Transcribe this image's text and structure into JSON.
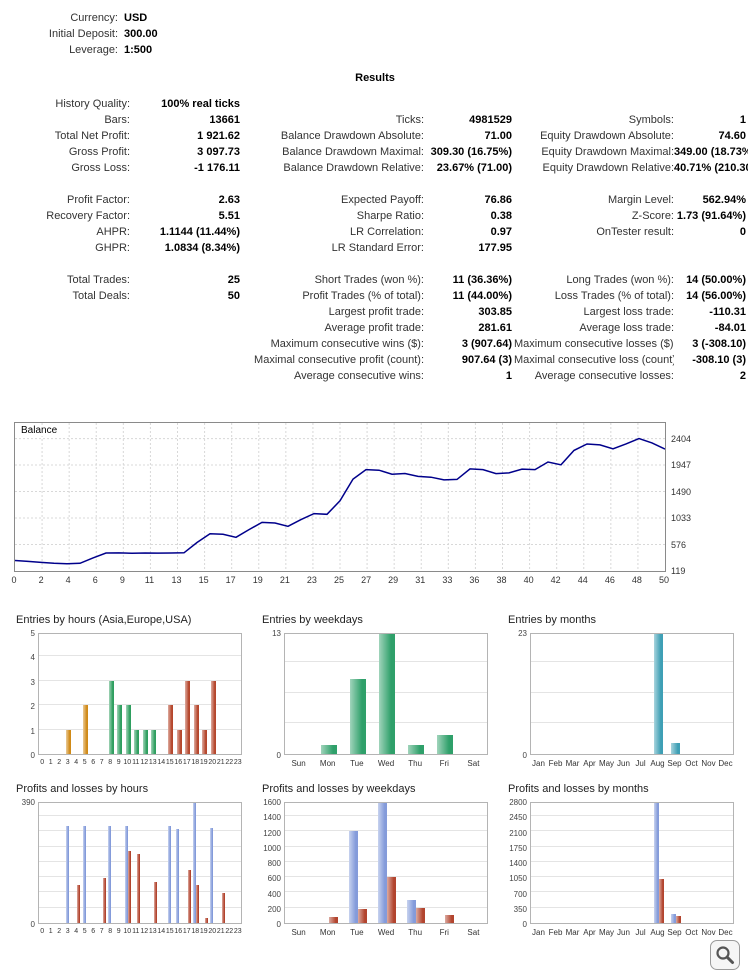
{
  "results_title": "Results",
  "account_info": [
    {
      "label": "Currency:",
      "value": "USD"
    },
    {
      "label": "Initial Deposit:",
      "value": "300.00"
    },
    {
      "label": "Leverage:",
      "value": "1:500"
    }
  ],
  "stats_groups": [
    {
      "rows": [
        [
          {
            "label": "History Quality:",
            "value": "100% real ticks"
          },
          null,
          null
        ],
        [
          {
            "label": "Bars:",
            "value": "13661"
          },
          {
            "label": "Ticks:",
            "value": "4981529"
          },
          {
            "label": "Symbols:",
            "value": "1"
          }
        ],
        [
          {
            "label": "Total Net Profit:",
            "value": "1 921.62"
          },
          {
            "label": "Balance Drawdown Absolute:",
            "value": "71.00"
          },
          {
            "label": "Equity Drawdown Absolute:",
            "value": "74.60"
          }
        ],
        [
          {
            "label": "Gross Profit:",
            "value": "3 097.73"
          },
          {
            "label": "Balance Drawdown Maximal:",
            "value": "309.30 (16.75%)"
          },
          {
            "label": "Equity Drawdown Maximal:",
            "value": "349.00 (18.73%)"
          }
        ],
        [
          {
            "label": "Gross Loss:",
            "value": "-1 176.11"
          },
          {
            "label": "Balance Drawdown Relative:",
            "value": "23.67% (71.00)"
          },
          {
            "label": "Equity Drawdown Relative:",
            "value": "40.71% (210.30)"
          }
        ]
      ]
    },
    {
      "rows": [
        [
          {
            "label": "Profit Factor:",
            "value": "2.63"
          },
          {
            "label": "Expected Payoff:",
            "value": "76.86"
          },
          {
            "label": "Margin Level:",
            "value": "562.94%"
          }
        ],
        [
          {
            "label": "Recovery Factor:",
            "value": "5.51"
          },
          {
            "label": "Sharpe Ratio:",
            "value": "0.38"
          },
          {
            "label": "Z-Score:",
            "value": "1.73 (91.64%)"
          }
        ],
        [
          {
            "label": "AHPR:",
            "value": "1.1144 (11.44%)"
          },
          {
            "label": "LR Correlation:",
            "value": "0.97"
          },
          {
            "label": "OnTester result:",
            "value": "0"
          }
        ],
        [
          {
            "label": "GHPR:",
            "value": "1.0834 (8.34%)"
          },
          {
            "label": "LR Standard Error:",
            "value": "177.95"
          },
          null
        ]
      ]
    },
    {
      "rows": [
        [
          {
            "label": "Total Trades:",
            "value": "25"
          },
          {
            "label": "Short Trades (won %):",
            "value": "11 (36.36%)"
          },
          {
            "label": "Long Trades (won %):",
            "value": "14 (50.00%)"
          }
        ],
        [
          {
            "label": "Total Deals:",
            "value": "50"
          },
          {
            "label": "Profit Trades (% of total):",
            "value": "11 (44.00%)"
          },
          {
            "label": "Loss Trades (% of total):",
            "value": "14 (56.00%)"
          }
        ],
        [
          null,
          {
            "label": "Largest profit trade:",
            "value": "303.85"
          },
          {
            "label": "Largest loss trade:",
            "value": "-110.31"
          }
        ],
        [
          null,
          {
            "label": "Average profit trade:",
            "value": "281.61"
          },
          {
            "label": "Average loss trade:",
            "value": "-84.01"
          }
        ],
        [
          null,
          {
            "label": "Maximum consecutive wins ($):",
            "value": "3 (907.64)"
          },
          {
            "label": "Maximum consecutive losses ($):",
            "value": "3 (-308.10)"
          }
        ],
        [
          null,
          {
            "label": "Maximal consecutive profit (count):",
            "value": "907.64 (3)"
          },
          {
            "label": "Maximal consecutive loss (count):",
            "value": "-308.10 (3)"
          }
        ],
        [
          null,
          {
            "label": "Average consecutive wins:",
            "value": "1"
          },
          {
            "label": "Average consecutive losses:",
            "value": "2"
          }
        ]
      ]
    }
  ],
  "chart_data": [
    {
      "id": "balance",
      "type": "line",
      "title": "Balance",
      "line_color": "#00008B",
      "grid_color": "#d8d8d8",
      "ylim": [
        119,
        2500
      ],
      "y_ticks": [
        2404,
        1947,
        1490,
        1033,
        576,
        119
      ],
      "x_ticks": [
        "0",
        "2",
        "4",
        "6",
        "9",
        "11",
        "13",
        "15",
        "17",
        "19",
        "21",
        "23",
        "25",
        "27",
        "29",
        "31",
        "33",
        "36",
        "38",
        "40",
        "42",
        "44",
        "46",
        "48",
        "50"
      ],
      "values": [
        300,
        285,
        268,
        252,
        245,
        252,
        345,
        430,
        432,
        425,
        430,
        427,
        430,
        433,
        610,
        760,
        752,
        700,
        833,
        958,
        948,
        890,
        1005,
        1110,
        1098,
        1330,
        1705,
        1868,
        1858,
        1790,
        1802,
        1752,
        1738,
        1690,
        1700,
        1880,
        1868,
        1800,
        1812,
        1878,
        1868,
        2000,
        1952,
        2200,
        2310,
        2295,
        2228,
        2312,
        2404,
        2330,
        2222
      ]
    },
    {
      "id": "entries-by-hours",
      "type": "bar",
      "title": "Entries by hours (Asia,Europe,USA)",
      "categories": [
        "0",
        "1",
        "2",
        "3",
        "4",
        "5",
        "6",
        "7",
        "8",
        "9",
        "10",
        "11",
        "12",
        "13",
        "14",
        "15",
        "16",
        "17",
        "18",
        "19",
        "20",
        "21",
        "22",
        "23"
      ],
      "values": [
        0,
        0,
        0,
        1,
        0,
        2,
        0,
        0,
        3,
        2,
        2,
        1,
        1,
        1,
        0,
        2,
        1,
        3,
        2,
        1,
        3,
        0,
        0,
        0
      ],
      "bar_colors": [
        "#D08A17",
        "#D08A17",
        "#D08A17",
        "#D08A17",
        "#D08A17",
        "#D08A17",
        "#D08A17",
        "#D08A17",
        "#2E9E5F",
        "#2E9E5F",
        "#2E9E5F",
        "#2E9E5F",
        "#2E9E5F",
        "#2E9E5F",
        "#2E9E5F",
        "#B5462C",
        "#B5462C",
        "#B5462C",
        "#B5462C",
        "#B5462C",
        "#B5462C",
        "#B5462C",
        "#B5462C",
        "#B5462C"
      ],
      "ymax": 5,
      "y_ticks": [
        0,
        1,
        2,
        3,
        4,
        5
      ]
    },
    {
      "id": "entries-by-weekdays",
      "type": "bar",
      "title": "Entries by weekdays",
      "categories": [
        "Sun",
        "Mon",
        "Tue",
        "Wed",
        "Thu",
        "Fri",
        "Sat"
      ],
      "values": [
        0,
        1,
        8,
        13,
        1,
        2,
        0
      ],
      "color": "#2FA06A",
      "ymax": 13,
      "y_ticks": [
        0,
        13
      ],
      "minor_grid": 4
    },
    {
      "id": "entries-by-months",
      "type": "bar",
      "title": "Entries by months",
      "categories": [
        "Jan",
        "Feb",
        "Mar",
        "Apr",
        "May",
        "Jun",
        "Jul",
        "Aug",
        "Sep",
        "Oct",
        "Nov",
        "Dec"
      ],
      "values": [
        0,
        0,
        0,
        0,
        0,
        0,
        0,
        23,
        2,
        0,
        0,
        0
      ],
      "color": "#3E9FB5",
      "ymax": 23,
      "y_ticks": [
        0,
        23
      ],
      "minor_grid": 4
    },
    {
      "id": "pl-by-hours",
      "type": "bar2",
      "title": "Profits and losses by hours",
      "categories": [
        "0",
        "1",
        "2",
        "3",
        "4",
        "5",
        "6",
        "7",
        "8",
        "9",
        "10",
        "11",
        "12",
        "13",
        "14",
        "15",
        "16",
        "17",
        "18",
        "19",
        "20",
        "21",
        "22",
        "23"
      ],
      "series": [
        {
          "name": "profit",
          "color": "#849BDA",
          "values": [
            0,
            0,
            0,
            310,
            0,
            310,
            0,
            0,
            310,
            0,
            310,
            0,
            0,
            0,
            0,
            310,
            300,
            0,
            390,
            0,
            305,
            0,
            0,
            0
          ]
        },
        {
          "name": "loss",
          "color": "#B2442E",
          "values": [
            0,
            0,
            0,
            0,
            120,
            0,
            0,
            145,
            0,
            0,
            230,
            220,
            0,
            130,
            0,
            0,
            0,
            170,
            120,
            15,
            0,
            95,
            0,
            0
          ]
        }
      ],
      "ymax": 390,
      "y_ticks": [
        0,
        390
      ],
      "minor_grid": 8
    },
    {
      "id": "pl-by-weekdays",
      "type": "bar2",
      "title": "Profits and losses by weekdays",
      "categories": [
        "Sun",
        "Mon",
        "Tue",
        "Wed",
        "Thu",
        "Fri",
        "Sat"
      ],
      "series": [
        {
          "name": "profit",
          "color": "#849BDA",
          "values": [
            0,
            0,
            1200,
            1600,
            300,
            0,
            0
          ]
        },
        {
          "name": "loss",
          "color": "#B2442E",
          "values": [
            0,
            80,
            180,
            600,
            200,
            100,
            0
          ]
        }
      ],
      "ymax": 1600,
      "y_ticks": [
        0,
        200,
        400,
        600,
        800,
        1000,
        1200,
        1400,
        1600
      ]
    },
    {
      "id": "pl-by-months",
      "type": "bar2",
      "title": "Profits and losses by months",
      "categories": [
        "Jan",
        "Feb",
        "Mar",
        "Apr",
        "May",
        "Jun",
        "Jul",
        "Aug",
        "Sep",
        "Oct",
        "Nov",
        "Dec"
      ],
      "series": [
        {
          "name": "profit",
          "color": "#849BDA",
          "values": [
            0,
            0,
            0,
            0,
            0,
            0,
            0,
            2800,
            200,
            0,
            0,
            0
          ]
        },
        {
          "name": "loss",
          "color": "#B2442E",
          "values": [
            0,
            0,
            0,
            0,
            0,
            0,
            0,
            1000,
            150,
            0,
            0,
            0
          ]
        }
      ],
      "ymax": 2800,
      "y_ticks": [
        0,
        350,
        700,
        1050,
        1400,
        1750,
        2100,
        2450,
        2800
      ]
    }
  ]
}
